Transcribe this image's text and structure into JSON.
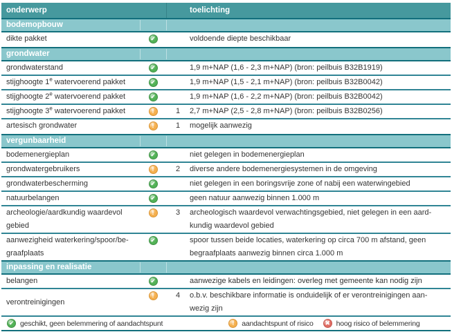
{
  "colors": {
    "header_bg": "#46999e",
    "section_bg": "#8ac7cc",
    "dark_border": "#126f7c",
    "row_divider": "#2f8494",
    "header_text": "#ffffff",
    "body_text": "#333333",
    "status_ok": "#53b257",
    "status_warn": "#f5b04f",
    "status_risk": "#e06e65"
  },
  "status_icons": {
    "ok": {
      "icon_name": "check-icon",
      "glyph": "✔",
      "fill": "#53b257",
      "border": "#3e9044"
    },
    "warn": {
      "icon_name": "exclamation-icon",
      "glyph": "!",
      "fill": "#f5b04f",
      "border": "#d99434"
    },
    "risk": {
      "icon_name": "cross-icon",
      "glyph": "✖",
      "fill": "#e06e65",
      "border": "#c4564e"
    }
  },
  "table": {
    "header": {
      "onderwerp": "onderwerp",
      "toelichting": "toelichting"
    },
    "rows": [
      {
        "type": "section",
        "label": "bodemopbouw"
      },
      {
        "type": "item",
        "label": "dikte pakket",
        "status": "ok",
        "note": "",
        "toelichting": "voldoende diepte beschikbaar"
      },
      {
        "type": "section",
        "label": "grondwater"
      },
      {
        "type": "item",
        "label": "grondwaterstand",
        "status": "ok",
        "note": "",
        "toelichting": "1,9 m+NAP (1,6 - 2,3 m+NAP) (bron: peilbuis B32B1919)"
      },
      {
        "type": "item",
        "label_parts": [
          {
            "t": "stijghoogte 1"
          },
          {
            "t": "e",
            "sup": true
          },
          {
            "t": " watervoerend pakket"
          }
        ],
        "status": "ok",
        "note": "",
        "toelichting": "1,9 m+NAP (1,5 - 2,1 m+NAP) (bron: peilbuis B32B0042)"
      },
      {
        "type": "item",
        "label_parts": [
          {
            "t": "stijghoogte 2"
          },
          {
            "t": "e",
            "sup": true
          },
          {
            "t": " watervoerend pakket"
          }
        ],
        "status": "ok",
        "note": "",
        "toelichting": "1,9 m+NAP (1,6 - 2,2 m+NAP) (bron: peilbuis B32B0042)"
      },
      {
        "type": "item",
        "label_parts": [
          {
            "t": "stijghoogte 3"
          },
          {
            "t": "e",
            "sup": true
          },
          {
            "t": " watervoerend pakket"
          }
        ],
        "status": "warn",
        "note": "1",
        "toelichting": "2,7 m+NAP (2,5 - 2,8 m+NAP) (bron: peilbuis B32B0256)"
      },
      {
        "type": "item",
        "label": "artesisch grondwater",
        "status": "warn",
        "note": "1",
        "toelichting": "mogelijk aanwezig"
      },
      {
        "type": "section",
        "label": "vergunbaarheid"
      },
      {
        "type": "item",
        "label": "bodemenergieplan",
        "status": "ok",
        "note": "",
        "toelichting": "niet gelegen in bodemenergieplan"
      },
      {
        "type": "item",
        "label": "grondwatergebruikers",
        "status": "warn",
        "note": "2",
        "toelichting": "diverse andere bodemenergiesystemen in de omgeving"
      },
      {
        "type": "item",
        "label": "grondwaterbescherming",
        "status": "ok",
        "note": "",
        "toelichting": "niet gelegen in een boringsvrije zone of nabij een waterwingebied"
      },
      {
        "type": "item",
        "label": "natuurbelangen",
        "status": "ok",
        "note": "",
        "toelichting": "geen natuur aanwezig binnen 1.000 m"
      },
      {
        "type": "item",
        "label_lines": [
          "archeologie/aardkundig waardevol",
          "gebied"
        ],
        "status": "warn",
        "note": "3",
        "toelichting_lines": [
          "archeologisch waardevol verwachtingsgebied, niet gelegen in een aard-",
          "kundig waardevol gebied"
        ]
      },
      {
        "type": "item",
        "label_lines": [
          "aanwezigheid waterkering/spoor/be-",
          "graafplaats"
        ],
        "status": "ok",
        "note": "",
        "toelichting_lines": [
          "spoor tussen beide locaties, waterkering op circa 700 m afstand, geen",
          "begraafplaats aanwezig binnen circa 1.000 m"
        ]
      },
      {
        "type": "section",
        "label": "inpassing en realisatie"
      },
      {
        "type": "item",
        "label": "belangen",
        "status": "ok",
        "note": "",
        "toelichting": "aanwezige kabels en leidingen: overleg met gemeente kan nodig zijn"
      },
      {
        "type": "item",
        "label": "verontreinigingen",
        "label_valign": "center",
        "status": "warn",
        "note": "4",
        "toelichting_lines": [
          "o.b.v. beschikbare informatie is onduidelijk of er verontreinigingen aan-",
          "wezig zijn"
        ]
      }
    ]
  },
  "legend": {
    "items": [
      {
        "status": "ok",
        "label": "geschikt, geen belemmering of aandachtspunt"
      },
      {
        "status": "warn",
        "label": "aandachtspunt of risico"
      },
      {
        "status": "risk",
        "label": "hoog risico of belemmering"
      }
    ]
  }
}
